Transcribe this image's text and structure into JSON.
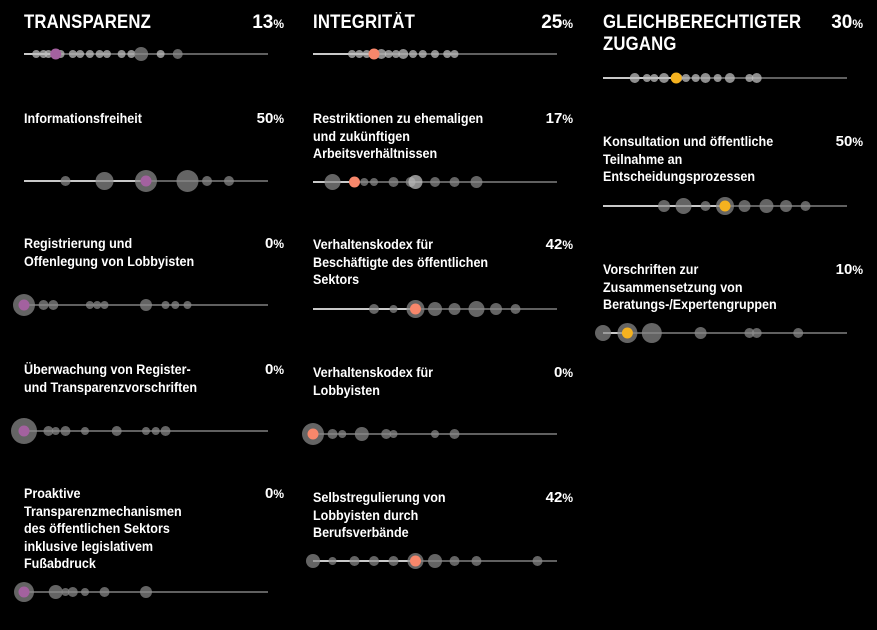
{
  "colors": {
    "background": "#000000",
    "grey_dot": "#8a8a8a",
    "grey_dot_light": "#bdbdbd",
    "line": "#9a9a9a",
    "fill_line": "#ffffff",
    "transparenz": "#a3619f",
    "integritaet": "#f7876b",
    "zugang": "#f5b21f"
  },
  "chart_data": [
    {
      "type": "scatter",
      "category": "transparenz",
      "title": "TRANSPARENZ",
      "value": 13,
      "unit": "%",
      "highlight_color": "#a3619f",
      "xlim": [
        0,
        100
      ],
      "dots": [
        {
          "x": 5,
          "r": 4,
          "light": true
        },
        {
          "x": 8,
          "r": 4,
          "light": true
        },
        {
          "x": 10,
          "r": 4,
          "light": true
        },
        {
          "x": 15,
          "r": 4,
          "light": true
        },
        {
          "x": 20,
          "r": 4,
          "light": true
        },
        {
          "x": 23,
          "r": 4,
          "light": true
        },
        {
          "x": 27,
          "r": 4,
          "light": true
        },
        {
          "x": 31,
          "r": 4,
          "light": true
        },
        {
          "x": 34,
          "r": 4,
          "light": true
        },
        {
          "x": 40,
          "r": 4,
          "light": true
        },
        {
          "x": 44,
          "r": 4,
          "light": true
        },
        {
          "x": 48,
          "r": 7,
          "light": false
        },
        {
          "x": 56,
          "r": 4,
          "light": true
        },
        {
          "x": 63,
          "r": 5,
          "light": false
        }
      ]
    },
    {
      "type": "scatter",
      "category": "transparenz",
      "title": "Informationsfreiheit",
      "value": 50,
      "unit": "%",
      "highlight_color": "#a3619f",
      "xlim": [
        0,
        100
      ],
      "dots": [
        {
          "x": 17,
          "r": 5,
          "light": false
        },
        {
          "x": 33,
          "r": 9,
          "light": false
        },
        {
          "x": 50,
          "r": 11,
          "light": false
        },
        {
          "x": 67,
          "r": 11,
          "light": false
        },
        {
          "x": 75,
          "r": 5,
          "light": false
        },
        {
          "x": 84,
          "r": 5,
          "light": false
        }
      ]
    },
    {
      "type": "scatter",
      "category": "transparenz",
      "title": "Registrierung und Offenlegung von Lobbyisten",
      "value": 0,
      "unit": "%",
      "highlight_color": "#a3619f",
      "xlim": [
        0,
        100
      ],
      "dots": [
        {
          "x": 0,
          "r": 11,
          "light": false
        },
        {
          "x": 8,
          "r": 5,
          "light": false
        },
        {
          "x": 12,
          "r": 5,
          "light": false
        },
        {
          "x": 27,
          "r": 4,
          "light": false
        },
        {
          "x": 30,
          "r": 4,
          "light": false
        },
        {
          "x": 33,
          "r": 4,
          "light": false
        },
        {
          "x": 50,
          "r": 6,
          "light": false
        },
        {
          "x": 58,
          "r": 4,
          "light": false
        },
        {
          "x": 62,
          "r": 4,
          "light": false
        },
        {
          "x": 67,
          "r": 4,
          "light": false
        }
      ]
    },
    {
      "type": "scatter",
      "category": "transparenz",
      "title": "Überwachung von Register- und Transparenzvorschriften",
      "value": 0,
      "unit": "%",
      "highlight_color": "#a3619f",
      "xlim": [
        0,
        100
      ],
      "dots": [
        {
          "x": 0,
          "r": 13,
          "light": false
        },
        {
          "x": 10,
          "r": 5,
          "light": false
        },
        {
          "x": 13,
          "r": 4,
          "light": false
        },
        {
          "x": 17,
          "r": 5,
          "light": false
        },
        {
          "x": 25,
          "r": 4,
          "light": false
        },
        {
          "x": 38,
          "r": 5,
          "light": false
        },
        {
          "x": 50,
          "r": 4,
          "light": false
        },
        {
          "x": 54,
          "r": 4,
          "light": false
        },
        {
          "x": 58,
          "r": 5,
          "light": false
        }
      ]
    },
    {
      "type": "scatter",
      "category": "transparenz",
      "title": "Proaktive Transparenzmechanismen des öffentlichen Sektors inklusive legislativem Fußabdruck",
      "value": 0,
      "unit": "%",
      "highlight_color": "#a3619f",
      "xlim": [
        0,
        100
      ],
      "dots": [
        {
          "x": 0,
          "r": 10,
          "light": false
        },
        {
          "x": 13,
          "r": 7,
          "light": false
        },
        {
          "x": 17,
          "r": 4,
          "light": false
        },
        {
          "x": 20,
          "r": 5,
          "light": false
        },
        {
          "x": 25,
          "r": 4,
          "light": false
        },
        {
          "x": 33,
          "r": 5,
          "light": false
        },
        {
          "x": 50,
          "r": 6,
          "light": false
        }
      ]
    },
    {
      "type": "scatter",
      "category": "integritaet",
      "title": "INTEGRITÄT",
      "value": 25,
      "unit": "%",
      "highlight_color": "#f7876b",
      "xlim": [
        0,
        100
      ],
      "dots": [
        {
          "x": 16,
          "r": 4,
          "light": true
        },
        {
          "x": 19,
          "r": 4,
          "light": true
        },
        {
          "x": 22,
          "r": 4,
          "light": true
        },
        {
          "x": 28,
          "r": 5,
          "light": true
        },
        {
          "x": 31,
          "r": 4,
          "light": true
        },
        {
          "x": 34,
          "r": 4,
          "light": true
        },
        {
          "x": 37,
          "r": 5,
          "light": true
        },
        {
          "x": 41,
          "r": 4,
          "light": true
        },
        {
          "x": 45,
          "r": 4,
          "light": true
        },
        {
          "x": 50,
          "r": 4,
          "light": true
        },
        {
          "x": 55,
          "r": 4,
          "light": true
        },
        {
          "x": 58,
          "r": 4,
          "light": true
        }
      ]
    },
    {
      "type": "scatter",
      "category": "integritaet",
      "title": "Restriktionen zu ehemaligen und zukünftigen Arbeitsverhältnissen",
      "value": 17,
      "unit": "%",
      "highlight_color": "#f7876b",
      "xlim": [
        0,
        100
      ],
      "dots": [
        {
          "x": 8,
          "r": 8,
          "light": false
        },
        {
          "x": 21,
          "r": 4,
          "light": false
        },
        {
          "x": 25,
          "r": 4,
          "light": false
        },
        {
          "x": 33,
          "r": 5,
          "light": false
        },
        {
          "x": 40,
          "r": 5,
          "light": false
        },
        {
          "x": 42,
          "r": 7,
          "light": true
        },
        {
          "x": 50,
          "r": 5,
          "light": false
        },
        {
          "x": 58,
          "r": 5,
          "light": false
        },
        {
          "x": 67,
          "r": 6,
          "light": false
        }
      ]
    },
    {
      "type": "scatter",
      "category": "integritaet",
      "title": "Verhaltenskodex für Beschäftigte des öffentlichen Sektors",
      "value": 42,
      "unit": "%",
      "highlight_color": "#f7876b",
      "xlim": [
        0,
        100
      ],
      "dots": [
        {
          "x": 25,
          "r": 5,
          "light": false
        },
        {
          "x": 33,
          "r": 4,
          "light": false
        },
        {
          "x": 42,
          "r": 9,
          "light": false
        },
        {
          "x": 50,
          "r": 7,
          "light": false
        },
        {
          "x": 58,
          "r": 6,
          "light": false
        },
        {
          "x": 67,
          "r": 8,
          "light": false
        },
        {
          "x": 75,
          "r": 6,
          "light": false
        },
        {
          "x": 83,
          "r": 5,
          "light": false
        }
      ]
    },
    {
      "type": "scatter",
      "category": "integritaet",
      "title": "Verhaltenskodex für Lobbyisten",
      "value": 0,
      "unit": "%",
      "highlight_color": "#f7876b",
      "xlim": [
        0,
        100
      ],
      "dots": [
        {
          "x": 0,
          "r": 11,
          "light": false
        },
        {
          "x": 8,
          "r": 5,
          "light": false
        },
        {
          "x": 12,
          "r": 4,
          "light": false
        },
        {
          "x": 20,
          "r": 7,
          "light": false
        },
        {
          "x": 30,
          "r": 5,
          "light": false
        },
        {
          "x": 33,
          "r": 4,
          "light": false
        },
        {
          "x": 50,
          "r": 4,
          "light": false
        },
        {
          "x": 58,
          "r": 5,
          "light": false
        }
      ]
    },
    {
      "type": "scatter",
      "category": "integritaet",
      "title": "Selbstregulierung von Lobbyisten durch Berufsverbände",
      "value": 42,
      "unit": "%",
      "highlight_color": "#f7876b",
      "xlim": [
        0,
        100
      ],
      "dots": [
        {
          "x": 0,
          "r": 7,
          "light": false
        },
        {
          "x": 8,
          "r": 4,
          "light": false
        },
        {
          "x": 17,
          "r": 5,
          "light": false
        },
        {
          "x": 25,
          "r": 5,
          "light": false
        },
        {
          "x": 33,
          "r": 5,
          "light": false
        },
        {
          "x": 42,
          "r": 8,
          "light": false
        },
        {
          "x": 50,
          "r": 7,
          "light": false
        },
        {
          "x": 58,
          "r": 5,
          "light": false
        },
        {
          "x": 67,
          "r": 5,
          "light": false
        },
        {
          "x": 92,
          "r": 5,
          "light": false
        }
      ]
    },
    {
      "type": "scatter",
      "category": "zugang",
      "title": "GLEICHBERECHTIGTER ZUGANG",
      "value": 30,
      "unit": "%",
      "highlight_color": "#f5b21f",
      "xlim": [
        0,
        100
      ],
      "dots": [
        {
          "x": 13,
          "r": 5,
          "light": true
        },
        {
          "x": 18,
          "r": 4,
          "light": true
        },
        {
          "x": 21,
          "r": 4,
          "light": true
        },
        {
          "x": 25,
          "r": 5,
          "light": true
        },
        {
          "x": 31,
          "r": 4,
          "light": true
        },
        {
          "x": 34,
          "r": 4,
          "light": true
        },
        {
          "x": 38,
          "r": 4,
          "light": true
        },
        {
          "x": 42,
          "r": 5,
          "light": true
        },
        {
          "x": 47,
          "r": 4,
          "light": true
        },
        {
          "x": 52,
          "r": 5,
          "light": true
        },
        {
          "x": 60,
          "r": 4,
          "light": true
        },
        {
          "x": 63,
          "r": 5,
          "light": true
        }
      ]
    },
    {
      "type": "scatter",
      "category": "zugang",
      "title": "Konsultation und öffentliche Teilnahme an Entscheidungsprozessen",
      "value": 50,
      "unit": "%",
      "highlight_color": "#f5b21f",
      "xlim": [
        0,
        100
      ],
      "dots": [
        {
          "x": 25,
          "r": 6,
          "light": false
        },
        {
          "x": 33,
          "r": 8,
          "light": false
        },
        {
          "x": 42,
          "r": 5,
          "light": false
        },
        {
          "x": 50,
          "r": 9,
          "light": false
        },
        {
          "x": 58,
          "r": 6,
          "light": false
        },
        {
          "x": 67,
          "r": 7,
          "light": false
        },
        {
          "x": 75,
          "r": 6,
          "light": false
        },
        {
          "x": 83,
          "r": 5,
          "light": false
        }
      ]
    },
    {
      "type": "scatter",
      "category": "zugang",
      "title": "Vorschriften zur Zusammensetzung von Beratungs-/Expertengruppen",
      "value": 10,
      "unit": "%",
      "highlight_color": "#f5b21f",
      "xlim": [
        0,
        100
      ],
      "dots": [
        {
          "x": 0,
          "r": 8,
          "light": false
        },
        {
          "x": 10,
          "r": 10,
          "light": false
        },
        {
          "x": 20,
          "r": 10,
          "light": false
        },
        {
          "x": 40,
          "r": 6,
          "light": false
        },
        {
          "x": 60,
          "r": 5,
          "light": false
        },
        {
          "x": 63,
          "r": 5,
          "light": false
        },
        {
          "x": 80,
          "r": 5,
          "light": false
        }
      ]
    }
  ]
}
